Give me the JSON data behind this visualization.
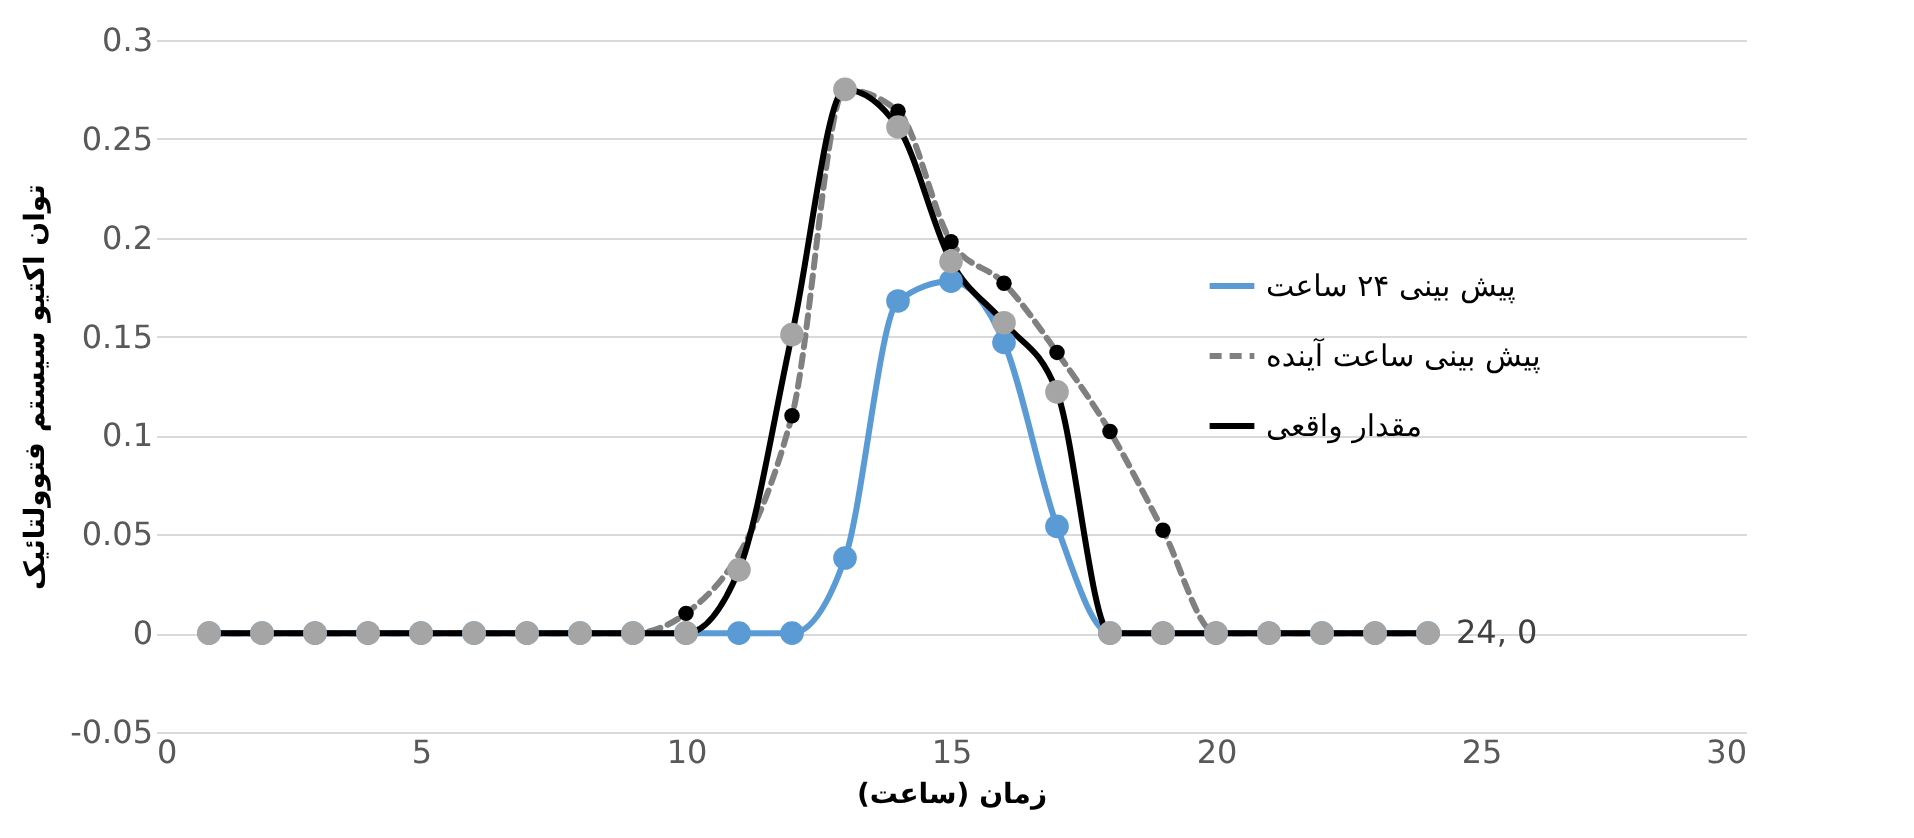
{
  "chart_data": {
    "type": "line",
    "xlabel": "زمان (ساعت)",
    "ylabel": "توان اکتیو سیستم فتوولتائیک",
    "x": [
      1,
      2,
      3,
      4,
      5,
      6,
      7,
      8,
      9,
      10,
      11,
      12,
      13,
      14,
      15,
      16,
      17,
      18,
      19,
      20,
      21,
      22,
      23,
      24
    ],
    "series": [
      {
        "name": "پیش بینی ۲۴ ساعت",
        "color": "#5b9bd5",
        "values": [
          0,
          0,
          0,
          0,
          0,
          0,
          0,
          0,
          0,
          0,
          0,
          0,
          0.038,
          0.168,
          0.178,
          0.147,
          0.054,
          0,
          0,
          0,
          0,
          0,
          0,
          0
        ]
      },
      {
        "name": "پیش بینی ساعت آینده",
        "color": "#808080",
        "line_style": "dashed",
        "values": [
          0,
          0,
          0,
          0,
          0,
          0,
          0,
          0,
          0,
          0.01,
          null,
          0.11,
          0.275,
          0.264,
          0.198,
          0.177,
          0.142,
          0.102,
          0.052,
          0,
          0,
          0,
          0,
          0
        ]
      },
      {
        "name": "مقدار واقعی",
        "color": "#000000",
        "values": [
          0,
          0,
          0,
          0,
          0,
          0,
          0,
          0,
          0,
          0,
          0.032,
          0.151,
          0.275,
          0.256,
          0.188,
          0.157,
          0.122,
          0,
          0,
          0,
          0,
          0,
          0,
          0
        ]
      }
    ],
    "xlim": [
      0,
      30
    ],
    "xticks": [
      0,
      5,
      10,
      15,
      20,
      25,
      30
    ],
    "ylim": [
      -0.05,
      0.3
    ],
    "yticks": [
      {
        "value": -0.05,
        "label": "-0.05"
      },
      0,
      0.05,
      0.1,
      0.15,
      0.2,
      0.25,
      0.3
    ],
    "grid": "y",
    "legend": "right",
    "marker": "circle",
    "annotations": [
      {
        "text": "24, 0",
        "x": 24,
        "y": 0
      }
    ]
  }
}
